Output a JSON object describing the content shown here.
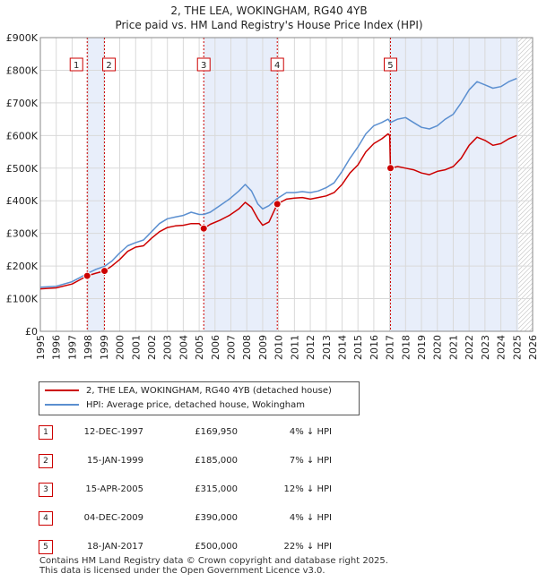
{
  "chart_data": {
    "type": "line",
    "title": "2, THE LEA, WOKINGHAM, RG40 4YB",
    "subtitle": "Price paid vs. HM Land Registry's House Price Index (HPI)",
    "xlabel": "",
    "ylabel": "",
    "xlim": [
      1995,
      2026
    ],
    "ylim": [
      0,
      900000
    ],
    "x_ticks": [
      "1995",
      "1996",
      "1997",
      "1998",
      "1999",
      "2000",
      "2001",
      "2002",
      "2003",
      "2004",
      "2005",
      "2006",
      "2007",
      "2008",
      "2009",
      "2010",
      "2011",
      "2012",
      "2013",
      "2014",
      "2015",
      "2016",
      "2017",
      "2018",
      "2019",
      "2020",
      "2021",
      "2022",
      "2023",
      "2024",
      "2025",
      "2026"
    ],
    "y_ticks": [
      {
        "value": 0,
        "label": "£0"
      },
      {
        "value": 100000,
        "label": "£100K"
      },
      {
        "value": 200000,
        "label": "£200K"
      },
      {
        "value": 300000,
        "label": "£300K"
      },
      {
        "value": 400000,
        "label": "£400K"
      },
      {
        "value": 500000,
        "label": "£500K"
      },
      {
        "value": 600000,
        "label": "£600K"
      },
      {
        "value": 700000,
        "label": "£700K"
      },
      {
        "value": 800000,
        "label": "£800K"
      },
      {
        "value": 900000,
        "label": "£900K"
      }
    ],
    "grid": true,
    "shaded_ranges": [
      [
        1997.95,
        1999.04
      ],
      [
        2005.29,
        2009.92
      ],
      [
        2017.05,
        2025.1
      ]
    ],
    "forecast_start": 2025.1,
    "series": [
      {
        "name": "2, THE LEA, WOKINGHAM, RG40 4YB (detached house)",
        "color": "#cc0000",
        "points": [
          [
            1995.0,
            130000
          ],
          [
            1996.0,
            133000
          ],
          [
            1997.0,
            145000
          ],
          [
            1997.5,
            158000
          ],
          [
            1997.95,
            169950
          ],
          [
            1998.5,
            178000
          ],
          [
            1999.04,
            185000
          ],
          [
            1999.5,
            200000
          ],
          [
            2000.0,
            220000
          ],
          [
            2000.5,
            245000
          ],
          [
            2001.0,
            258000
          ],
          [
            2001.5,
            262000
          ],
          [
            2002.0,
            285000
          ],
          [
            2002.5,
            305000
          ],
          [
            2003.0,
            318000
          ],
          [
            2003.5,
            323000
          ],
          [
            2004.0,
            325000
          ],
          [
            2004.5,
            330000
          ],
          [
            2005.0,
            330000
          ],
          [
            2005.29,
            315000
          ],
          [
            2005.7,
            328000
          ],
          [
            2006.3,
            340000
          ],
          [
            2006.9,
            355000
          ],
          [
            2007.5,
            375000
          ],
          [
            2007.9,
            395000
          ],
          [
            2008.3,
            380000
          ],
          [
            2008.7,
            345000
          ],
          [
            2009.0,
            325000
          ],
          [
            2009.4,
            335000
          ],
          [
            2009.92,
            390000
          ],
          [
            2010.5,
            405000
          ],
          [
            2011.0,
            408000
          ],
          [
            2011.5,
            410000
          ],
          [
            2012.0,
            405000
          ],
          [
            2012.5,
            410000
          ],
          [
            2013.0,
            415000
          ],
          [
            2013.5,
            425000
          ],
          [
            2014.0,
            450000
          ],
          [
            2014.5,
            485000
          ],
          [
            2015.0,
            510000
          ],
          [
            2015.5,
            550000
          ],
          [
            2016.0,
            575000
          ],
          [
            2016.5,
            590000
          ],
          [
            2016.9,
            605000
          ],
          [
            2017.0,
            600000
          ],
          [
            2017.05,
            500000
          ],
          [
            2017.5,
            505000
          ],
          [
            2018.0,
            500000
          ],
          [
            2018.5,
            495000
          ],
          [
            2019.0,
            485000
          ],
          [
            2019.5,
            480000
          ],
          [
            2020.0,
            490000
          ],
          [
            2020.5,
            495000
          ],
          [
            2021.0,
            505000
          ],
          [
            2021.5,
            530000
          ],
          [
            2022.0,
            570000
          ],
          [
            2022.5,
            595000
          ],
          [
            2023.0,
            585000
          ],
          [
            2023.5,
            570000
          ],
          [
            2024.0,
            575000
          ],
          [
            2024.5,
            590000
          ],
          [
            2025.0,
            600000
          ]
        ]
      },
      {
        "name": "HPI: Average price, detached house, Wokingham",
        "color": "#5b8fd0",
        "points": [
          [
            1995.0,
            135000
          ],
          [
            1996.0,
            138000
          ],
          [
            1997.0,
            152000
          ],
          [
            1997.5,
            165000
          ],
          [
            1997.95,
            177000
          ],
          [
            1998.5,
            190000
          ],
          [
            1999.04,
            199000
          ],
          [
            1999.5,
            215000
          ],
          [
            2000.0,
            240000
          ],
          [
            2000.5,
            262000
          ],
          [
            2001.0,
            272000
          ],
          [
            2001.5,
            280000
          ],
          [
            2002.0,
            305000
          ],
          [
            2002.5,
            330000
          ],
          [
            2003.0,
            345000
          ],
          [
            2003.5,
            350000
          ],
          [
            2004.0,
            355000
          ],
          [
            2004.5,
            365000
          ],
          [
            2005.0,
            358000
          ],
          [
            2005.29,
            358000
          ],
          [
            2005.7,
            365000
          ],
          [
            2006.3,
            385000
          ],
          [
            2006.9,
            405000
          ],
          [
            2007.5,
            430000
          ],
          [
            2007.9,
            450000
          ],
          [
            2008.3,
            430000
          ],
          [
            2008.7,
            390000
          ],
          [
            2009.0,
            375000
          ],
          [
            2009.4,
            385000
          ],
          [
            2009.92,
            407000
          ],
          [
            2010.5,
            425000
          ],
          [
            2011.0,
            425000
          ],
          [
            2011.5,
            428000
          ],
          [
            2012.0,
            425000
          ],
          [
            2012.5,
            430000
          ],
          [
            2013.0,
            440000
          ],
          [
            2013.5,
            455000
          ],
          [
            2014.0,
            490000
          ],
          [
            2014.5,
            530000
          ],
          [
            2015.0,
            565000
          ],
          [
            2015.5,
            605000
          ],
          [
            2016.0,
            630000
          ],
          [
            2016.5,
            640000
          ],
          [
            2016.9,
            650000
          ],
          [
            2017.05,
            640000
          ],
          [
            2017.5,
            650000
          ],
          [
            2018.0,
            655000
          ],
          [
            2018.5,
            640000
          ],
          [
            2019.0,
            625000
          ],
          [
            2019.5,
            620000
          ],
          [
            2020.0,
            630000
          ],
          [
            2020.5,
            650000
          ],
          [
            2021.0,
            665000
          ],
          [
            2021.5,
            700000
          ],
          [
            2022.0,
            740000
          ],
          [
            2022.5,
            765000
          ],
          [
            2023.0,
            755000
          ],
          [
            2023.5,
            745000
          ],
          [
            2024.0,
            750000
          ],
          [
            2024.5,
            765000
          ],
          [
            2025.0,
            775000
          ]
        ]
      }
    ],
    "sales": [
      {
        "id": "1",
        "x": 1997.95,
        "price": 169950
      },
      {
        "id": "2",
        "x": 1999.04,
        "price": 185000
      },
      {
        "id": "3",
        "x": 2005.29,
        "price": 315000
      },
      {
        "id": "4",
        "x": 2009.92,
        "price": 390000
      },
      {
        "id": "5",
        "x": 2017.05,
        "price": 500000
      }
    ]
  },
  "legend": {
    "property": "2, THE LEA, WOKINGHAM, RG40 4YB (detached house)",
    "hpi": "HPI: Average price, detached house, Wokingham",
    "property_color": "#cc0000",
    "hpi_color": "#5b8fd0"
  },
  "transactions": [
    {
      "num": "1",
      "date": "12-DEC-1997",
      "price": "£169,950",
      "hpi": "4% ↓ HPI"
    },
    {
      "num": "2",
      "date": "15-JAN-1999",
      "price": "£185,000",
      "hpi": "7% ↓ HPI"
    },
    {
      "num": "3",
      "date": "15-APR-2005",
      "price": "£315,000",
      "hpi": "12% ↓ HPI"
    },
    {
      "num": "4",
      "date": "04-DEC-2009",
      "price": "£390,000",
      "hpi": "4% ↓ HPI"
    },
    {
      "num": "5",
      "date": "18-JAN-2017",
      "price": "£500,000",
      "hpi": "22% ↓ HPI"
    }
  ],
  "footer": {
    "line1": "Contains HM Land Registry data © Crown copyright and database right 2025.",
    "line2": "This data is licensed under the Open Government Licence v3.0."
  }
}
